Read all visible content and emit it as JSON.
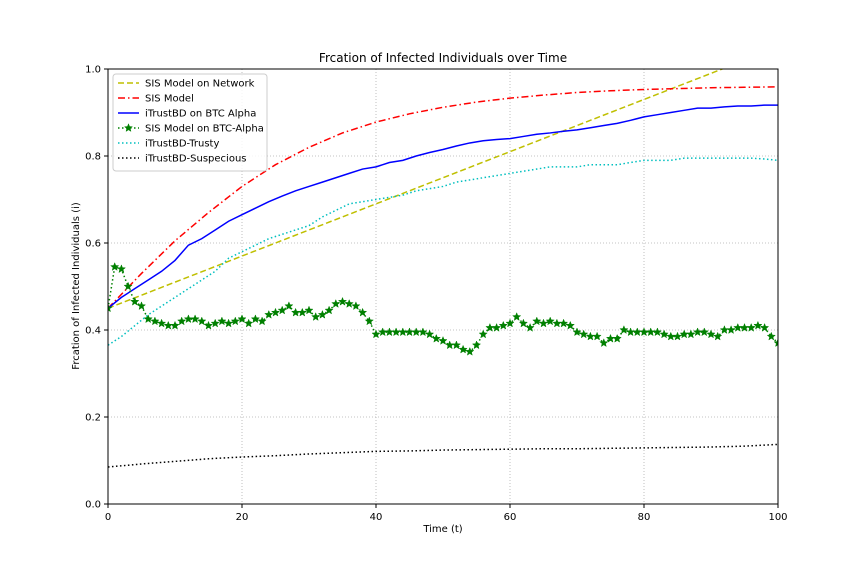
{
  "chart_data": {
    "type": "line",
    "title": "Frcation of Infected Individuals over Time",
    "xlabel": "Time (t)",
    "ylabel": "Frcation of Infected Individuals (i)",
    "xlim": [
      0,
      100
    ],
    "ylim": [
      0,
      1.0
    ],
    "xticks": [
      "0",
      "20",
      "40",
      "60",
      "80",
      "100"
    ],
    "yticks": [
      "0.0",
      "0.2",
      "0.4",
      "0.6",
      "0.8",
      "1.0"
    ],
    "grid": true,
    "legend_position": "upper-left",
    "series": [
      {
        "name": "SIS Model on Network",
        "color": "#bfbf00",
        "style": "dashed",
        "x": [
          0,
          100
        ],
        "y": [
          0.45,
          1.05
        ]
      },
      {
        "name": "SIS Model",
        "color": "#ff0000",
        "style": "dashdot",
        "x": [
          0,
          5,
          10,
          15,
          20,
          25,
          30,
          35,
          40,
          45,
          50,
          55,
          60,
          65,
          70,
          75,
          80,
          85,
          90,
          95,
          100
        ],
        "y": [
          0.45,
          0.53,
          0.605,
          0.67,
          0.73,
          0.78,
          0.82,
          0.853,
          0.878,
          0.897,
          0.912,
          0.924,
          0.933,
          0.94,
          0.946,
          0.95,
          0.953,
          0.955,
          0.957,
          0.958,
          0.959
        ]
      },
      {
        "name": "iTrustBD on BTC Alpha",
        "color": "#0000ff",
        "style": "solid",
        "x": [
          0,
          2,
          4,
          6,
          8,
          10,
          12,
          14,
          16,
          18,
          20,
          22,
          24,
          26,
          28,
          30,
          32,
          34,
          36,
          38,
          40,
          42,
          44,
          46,
          48,
          50,
          52,
          54,
          56,
          58,
          60,
          62,
          64,
          66,
          68,
          70,
          72,
          74,
          76,
          78,
          80,
          82,
          84,
          86,
          88,
          90,
          92,
          94,
          96,
          98,
          100
        ],
        "y": [
          0.45,
          0.475,
          0.495,
          0.515,
          0.535,
          0.56,
          0.595,
          0.61,
          0.63,
          0.65,
          0.665,
          0.68,
          0.695,
          0.708,
          0.72,
          0.73,
          0.74,
          0.75,
          0.76,
          0.77,
          0.775,
          0.785,
          0.79,
          0.8,
          0.808,
          0.815,
          0.823,
          0.83,
          0.835,
          0.838,
          0.84,
          0.845,
          0.85,
          0.853,
          0.857,
          0.86,
          0.865,
          0.87,
          0.875,
          0.882,
          0.89,
          0.895,
          0.9,
          0.905,
          0.91,
          0.91,
          0.913,
          0.915,
          0.915,
          0.917,
          0.917
        ]
      },
      {
        "name": "SIS Model on BTC-Alpha",
        "color": "#008000",
        "style": "dotted-star",
        "x": [
          0,
          1,
          2,
          3,
          4,
          5,
          6,
          7,
          8,
          9,
          10,
          11,
          12,
          13,
          14,
          15,
          16,
          17,
          18,
          19,
          20,
          21,
          22,
          23,
          24,
          25,
          26,
          27,
          28,
          29,
          30,
          31,
          32,
          33,
          34,
          35,
          36,
          37,
          38,
          39,
          40,
          41,
          42,
          43,
          44,
          45,
          46,
          47,
          48,
          49,
          50,
          51,
          52,
          53,
          54,
          55,
          56,
          57,
          58,
          59,
          60,
          61,
          62,
          63,
          64,
          65,
          66,
          67,
          68,
          69,
          70,
          71,
          72,
          73,
          74,
          75,
          76,
          77,
          78,
          79,
          80,
          81,
          82,
          83,
          84,
          85,
          86,
          87,
          88,
          89,
          90,
          91,
          92,
          93,
          94,
          95,
          96,
          97,
          98,
          99,
          100
        ],
        "y": [
          0.45,
          0.545,
          0.54,
          0.5,
          0.465,
          0.455,
          0.425,
          0.42,
          0.415,
          0.41,
          0.41,
          0.42,
          0.425,
          0.425,
          0.42,
          0.41,
          0.415,
          0.42,
          0.415,
          0.42,
          0.425,
          0.415,
          0.425,
          0.42,
          0.435,
          0.44,
          0.445,
          0.455,
          0.44,
          0.44,
          0.445,
          0.43,
          0.435,
          0.445,
          0.46,
          0.465,
          0.46,
          0.455,
          0.44,
          0.42,
          0.39,
          0.395,
          0.395,
          0.395,
          0.395,
          0.395,
          0.395,
          0.395,
          0.39,
          0.38,
          0.375,
          0.365,
          0.365,
          0.355,
          0.35,
          0.365,
          0.39,
          0.405,
          0.405,
          0.41,
          0.415,
          0.43,
          0.415,
          0.405,
          0.42,
          0.415,
          0.42,
          0.415,
          0.415,
          0.41,
          0.395,
          0.39,
          0.385,
          0.385,
          0.37,
          0.38,
          0.38,
          0.4,
          0.395,
          0.395,
          0.395,
          0.395,
          0.395,
          0.39,
          0.385,
          0.385,
          0.39,
          0.39,
          0.395,
          0.395,
          0.39,
          0.385,
          0.4,
          0.4,
          0.405,
          0.405,
          0.405,
          0.41,
          0.405,
          0.385,
          0.37
        ]
      },
      {
        "name": "iTrustBD-Trusty",
        "color": "#00bfbf",
        "style": "dotted",
        "x": [
          0,
          2,
          4,
          6,
          8,
          10,
          12,
          14,
          16,
          18,
          20,
          22,
          24,
          26,
          28,
          30,
          32,
          34,
          36,
          38,
          40,
          42,
          44,
          46,
          48,
          50,
          52,
          54,
          56,
          58,
          60,
          62,
          64,
          66,
          68,
          70,
          72,
          74,
          76,
          78,
          80,
          82,
          84,
          86,
          88,
          90,
          92,
          94,
          96,
          98,
          100
        ],
        "y": [
          0.365,
          0.385,
          0.41,
          0.435,
          0.455,
          0.475,
          0.495,
          0.515,
          0.535,
          0.565,
          0.58,
          0.595,
          0.61,
          0.62,
          0.63,
          0.64,
          0.66,
          0.675,
          0.69,
          0.695,
          0.7,
          0.705,
          0.71,
          0.72,
          0.725,
          0.73,
          0.74,
          0.745,
          0.75,
          0.755,
          0.76,
          0.765,
          0.77,
          0.775,
          0.775,
          0.775,
          0.78,
          0.78,
          0.78,
          0.785,
          0.79,
          0.79,
          0.79,
          0.795,
          0.795,
          0.795,
          0.795,
          0.795,
          0.795,
          0.793,
          0.79
        ]
      },
      {
        "name": "iTrustBD-Suspecious",
        "color": "#000000",
        "style": "dotted",
        "x": [
          0,
          5,
          10,
          15,
          20,
          25,
          30,
          35,
          40,
          45,
          50,
          55,
          60,
          65,
          70,
          75,
          80,
          85,
          90,
          95,
          100
        ],
        "y": [
          0.085,
          0.092,
          0.098,
          0.104,
          0.108,
          0.111,
          0.115,
          0.118,
          0.121,
          0.122,
          0.124,
          0.125,
          0.126,
          0.127,
          0.127,
          0.128,
          0.129,
          0.13,
          0.131,
          0.133,
          0.137
        ]
      }
    ]
  }
}
